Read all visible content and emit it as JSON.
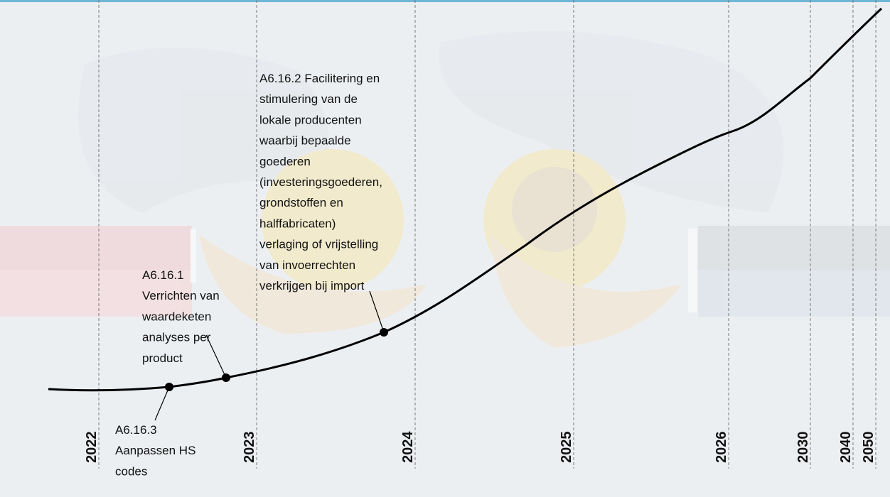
{
  "years": [
    "2022",
    "2023",
    "2024",
    "2025",
    "2026",
    "2030",
    "2040",
    "2050"
  ],
  "milestones": [
    {
      "lines": [
        "A6.16.3",
        "Aanpassen HS",
        "codes"
      ]
    },
    {
      "lines": [
        "A6.16.1",
        "Verrichten van",
        "waardeketen",
        "analyses per",
        "product"
      ]
    },
    {
      "lines": [
        "A6.16.2 Facilitering en",
        "stimulering van de",
        "lokale producenten",
        "waarbij bepaalde",
        "goederen",
        "(investeringsgoederen,",
        "grondstoffen en",
        "halffabricaten)",
        "verlaging of vrijstelling",
        "van invoerrechten",
        "verkrijgen bij import"
      ]
    }
  ]
}
